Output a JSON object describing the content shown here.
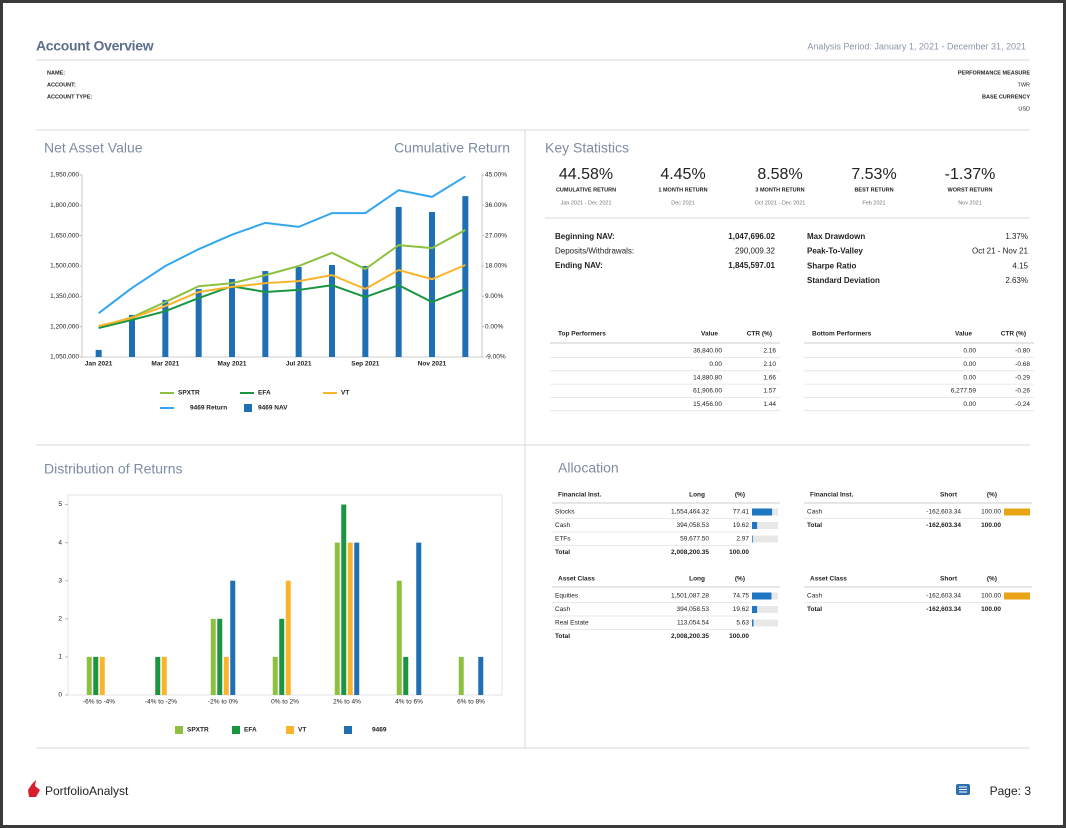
{
  "header": {
    "title": "Account Overview",
    "period": "Analysis Period: January 1, 2021 - December 31, 2021"
  },
  "account": {
    "fields": [
      "NAME:",
      "ACCOUNT:",
      "ACCOUNT TYPE:"
    ],
    "performance_measure_label": "PERFORMANCE MEASURE",
    "performance_measure": "TWR",
    "base_currency_label": "BASE CURRENCY",
    "base_currency": "USD"
  },
  "chart_data": [
    {
      "type": "combo",
      "title": "Net Asset Value",
      "y2_title": "Cumulative Return",
      "categories": [
        "Jan 2021",
        null,
        "Mar 2021",
        null,
        "May 2021",
        null,
        "Jul 2021",
        null,
        "Sep 2021",
        null,
        "Nov 2021",
        null
      ],
      "ylim": [
        1050000,
        1950000
      ],
      "yticks": [
        {
          "value": 1050000,
          "label": "1,050,000"
        },
        {
          "value": 1200000,
          "label": "1,200,000"
        },
        {
          "value": 1350000,
          "label": "1,350,000"
        },
        {
          "value": 1500000,
          "label": "1,500,000"
        },
        {
          "value": 1650000,
          "label": "1,650,000"
        },
        {
          "value": 1800000,
          "label": "1,800,000"
        },
        {
          "value": 1950000,
          "label": "1,950,000"
        }
      ],
      "y2lim": [
        -9,
        45
      ],
      "y2ticks": [
        {
          "value": -9,
          "label": "-9.00%"
        },
        {
          "value": 0,
          "label": "0.00%"
        },
        {
          "value": 9,
          "label": "9.00%"
        },
        {
          "value": 18,
          "label": "18.00%"
        },
        {
          "value": 27,
          "label": "27.00%"
        },
        {
          "value": 36,
          "label": "36.00%"
        },
        {
          "value": 45,
          "label": "45.00%"
        }
      ],
      "series": [
        {
          "name": "SPXTR",
          "kind": "line",
          "axis": "y2",
          "color": "#8dc03f",
          "values": [
            -0.1,
            2.8,
            7.3,
            12.0,
            12.9,
            15.3,
            18.0,
            21.9,
            17.1,
            24.2,
            23.3,
            28.7
          ]
        },
        {
          "name": "EFA",
          "kind": "line",
          "axis": "y2",
          "color": "#1a9641",
          "values": [
            -0.4,
            2.0,
            4.6,
            8.5,
            12.0,
            10.3,
            10.9,
            12.3,
            8.8,
            12.3,
            7.3,
            11.2
          ]
        },
        {
          "name": "VT",
          "kind": "line",
          "axis": "y2",
          "color": "#f9b42b",
          "values": [
            0.2,
            2.6,
            6.1,
            10.3,
            11.8,
            12.9,
            13.5,
            15.3,
            11.2,
            16.8,
            14.1,
            18.3
          ]
        },
        {
          "name": "9469 Return",
          "kind": "line",
          "axis": "y2",
          "color": "#33a7ee",
          "values": [
            4.0,
            11.5,
            18.0,
            23.0,
            27.3,
            30.8,
            29.6,
            33.7,
            33.7,
            40.5,
            38.5,
            44.58
          ]
        },
        {
          "name": "9469 NAV",
          "kind": "bar",
          "color": "#1f6fb5",
          "values": [
            1085000,
            1258000,
            1332000,
            1386000,
            1436000,
            1475000,
            1495000,
            1505000,
            1500000,
            1792000,
            1767000,
            1845597
          ]
        }
      ]
    },
    {
      "type": "bar",
      "title": "Distribution of Returns",
      "categories": [
        "-6% to -4%",
        "-4% to -2%",
        "-2% to 0%",
        "0% to 2%",
        "2% to 4%",
        "4% to 6%",
        "6% to 8%"
      ],
      "category_colors": [
        "#e8622c",
        "#e8622c",
        "#e8622c",
        "#2e9e48",
        "#2e9e48",
        "#2e9e48",
        "#2e9e48"
      ],
      "ylim": [
        0,
        5.25
      ],
      "yticks": [
        0,
        1,
        2,
        3,
        4,
        5
      ],
      "series": [
        {
          "name": "SPXTR",
          "color": "#8dc03f",
          "values": [
            1,
            0,
            2,
            1,
            4,
            3,
            1
          ]
        },
        {
          "name": "EFA",
          "color": "#1a9641",
          "values": [
            1,
            1,
            2,
            2,
            5,
            1,
            0
          ]
        },
        {
          "name": "VT",
          "color": "#f9b42b",
          "values": [
            1,
            1,
            1,
            3,
            4,
            0,
            0
          ]
        },
        {
          "name": "9469",
          "color": "#1f6fb5",
          "values": [
            0,
            0,
            3,
            0,
            4,
            4,
            1
          ]
        }
      ]
    }
  ],
  "key_statistics": {
    "title": "Key Statistics",
    "items": [
      {
        "value": "44.58%",
        "label": "CUMULATIVE RETURN",
        "period": "Jan 2021 - Dec 2021",
        "color": "#2db34a"
      },
      {
        "value": "4.45%",
        "label": "1 MONTH RETURN",
        "period": "Dec 2021",
        "color": "#2db34a"
      },
      {
        "value": "8.58%",
        "label": "3 MONTH RETURN",
        "period": "Oct 2021 - Dec 2021",
        "color": "#2db34a"
      },
      {
        "value": "7.53%",
        "label": "BEST RETURN",
        "period": "Feb 2021",
        "color": "#2db34a"
      },
      {
        "value": "-1.37%",
        "label": "WORST RETURN",
        "period": "Nov 2021",
        "color": "#e53935"
      }
    ],
    "nav": [
      [
        "Beginning NAV:",
        "1,047,696.02"
      ],
      [
        "Deposits/Withdrawals:",
        "290,009.32"
      ],
      [
        "Ending NAV:",
        "1,845,597.01"
      ]
    ],
    "risk": [
      [
        "Max Drawdown",
        "1.37%"
      ],
      [
        "Peak-To-Valley",
        "Oct 21 - Nov 21"
      ],
      [
        "Sharpe Ratio",
        "4.15"
      ],
      [
        "Standard Deviation",
        "2.63%"
      ]
    ]
  },
  "top_performers": {
    "headers": [
      "Top Performers",
      "Value",
      "CTR (%)"
    ],
    "rows": [
      [
        "36,840.00",
        "2.16"
      ],
      [
        "0.00",
        "2.10"
      ],
      [
        "14,880.80",
        "1.66"
      ],
      [
        "61,906.00",
        "1.57"
      ],
      [
        "15,456.00",
        "1.44"
      ]
    ]
  },
  "bottom_performers": {
    "headers": [
      "Bottom Performers",
      "Value",
      "CTR (%)"
    ],
    "rows": [
      [
        "0.00",
        "-0.80"
      ],
      [
        "0.00",
        "-0.68"
      ],
      [
        "0.00",
        "-0.29"
      ],
      [
        "6,277.59",
        "-0.26"
      ],
      [
        "0.00",
        "-0.24"
      ]
    ]
  },
  "allocation": {
    "title": "Allocation",
    "tables": [
      {
        "headers": [
          "Financial Inst.",
          "Long",
          "(%)"
        ],
        "color": "#1f77c4",
        "rows": [
          [
            "Stocks",
            "1,554,464.32",
            "77.41"
          ],
          [
            "Cash",
            "394,058.53",
            "19.62"
          ],
          [
            "ETFs",
            "59,677.50",
            "2.97"
          ],
          [
            "Total",
            "2,008,200.35",
            "100.00"
          ]
        ]
      },
      {
        "headers": [
          "Financial Inst.",
          "Short",
          "(%)"
        ],
        "color": "#e8a317",
        "rows": [
          [
            "Cash",
            "-162,603.34",
            "100.00"
          ],
          [
            "Total",
            "-162,603.34",
            "100.00"
          ]
        ]
      },
      {
        "headers": [
          "Asset Class",
          "Long",
          "(%)"
        ],
        "color": "#1f77c4",
        "rows": [
          [
            "Equities",
            "1,501,087.28",
            "74.75"
          ],
          [
            "Cash",
            "394,058.53",
            "19.62"
          ],
          [
            "Real Estate",
            "113,054.54",
            "5.63"
          ],
          [
            "Total",
            "2,008,200.35",
            "100.00"
          ]
        ]
      },
      {
        "headers": [
          "Asset Class",
          "Short",
          "(%)"
        ],
        "color": "#e8a317",
        "rows": [
          [
            "Cash",
            "-162,603.34",
            "100.00"
          ],
          [
            "Total",
            "-162,603.34",
            "100.00"
          ]
        ]
      }
    ]
  },
  "footer": {
    "brand": "PortfolioAnalyst",
    "page": "Page: 3"
  }
}
